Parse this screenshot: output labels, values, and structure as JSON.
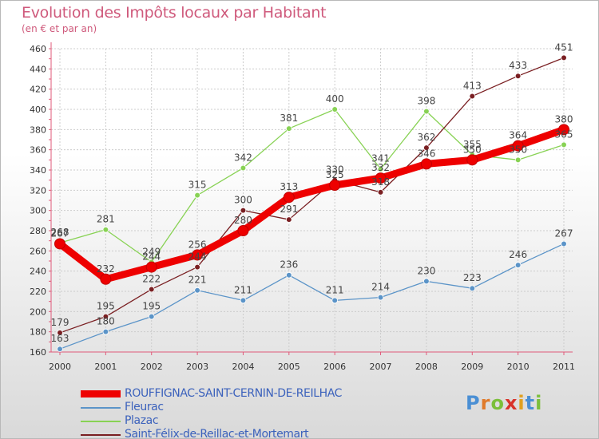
{
  "title": "Evolution des Impôts locaux par Habitant",
  "subtitle": "(en € et par an)",
  "logo": {
    "text": "Proxiti",
    "letters": [
      "P",
      "r",
      "o",
      "x",
      "i",
      "t",
      "i"
    ],
    "colors": [
      "#4a8fd4",
      "#e07a2a",
      "#7bbf3a",
      "#d8332b",
      "#e0a020",
      "#4a8fd4",
      "#7bbf3a"
    ]
  },
  "chart_data": {
    "type": "line",
    "title": "Evolution des Impôts locaux par Habitant",
    "ylabel": "(en € et par an)",
    "xlabel": "",
    "x": [
      "2000",
      "2001",
      "2002",
      "2003",
      "2004",
      "2005",
      "2006",
      "2007",
      "2008",
      "2009",
      "2010",
      "2011"
    ],
    "ylim": [
      160,
      460
    ],
    "yticks": [
      160,
      180,
      200,
      220,
      240,
      260,
      280,
      300,
      320,
      340,
      360,
      380,
      400,
      420,
      440,
      460
    ],
    "grid": true,
    "legend_position": "bottom-left",
    "series": [
      {
        "name": "ROUFFIGNAC-SAINT-CERNIN-DE-REILHAC",
        "color": "#ee0000",
        "values": [
          267,
          232,
          244,
          256,
          280,
          313,
          325,
          332,
          346,
          350,
          364,
          380
        ],
        "labels": [
          "267",
          "232",
          "244",
          "256",
          "280",
          "313",
          "325",
          "332",
          "346",
          "350",
          "364",
          "380"
        ]
      },
      {
        "name": "Fleurac",
        "color": "#5b94c8",
        "values": [
          163,
          180,
          195,
          221,
          211,
          236,
          211,
          214,
          230,
          223,
          246,
          267
        ],
        "labels": [
          "163",
          "180",
          "195",
          "221",
          "211",
          "236",
          "211",
          "214",
          "230",
          "223",
          "246",
          "267"
        ]
      },
      {
        "name": "Plazac",
        "color": "#88d254",
        "values": [
          268,
          281,
          249,
          315,
          342,
          381,
          400,
          341,
          398,
          355,
          350,
          365
        ],
        "labels": [
          "268",
          "281",
          "249",
          "315",
          "342",
          "381",
          "400",
          "341",
          "398",
          "355",
          "350",
          "365"
        ]
      },
      {
        "name": "Saint-Félix-de-Reillac-et-Mortemart",
        "color": "#7a1f22",
        "values": [
          179,
          195,
          222,
          244,
          300,
          291,
          330,
          318,
          362,
          413,
          433,
          451
        ],
        "labels": [
          "179",
          "195",
          "222",
          "244",
          "300",
          "291",
          "330",
          "318",
          "362",
          "413",
          "433",
          "451"
        ]
      }
    ]
  }
}
